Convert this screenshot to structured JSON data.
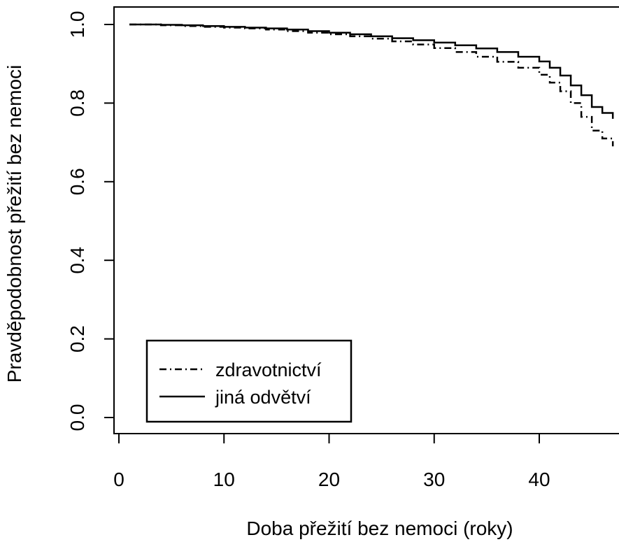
{
  "chart_data": {
    "type": "line",
    "title": "",
    "xlabel": "Doba přežití bez nemoci (roky)",
    "ylabel": "Pravděpodobnost přežití bez nemoci",
    "xlim": [
      1,
      47
    ],
    "ylim": [
      0,
      1
    ],
    "x_ticks": [
      0,
      10,
      20,
      30,
      40
    ],
    "x_tick_labels": [
      "0",
      "10",
      "20",
      "30",
      "40"
    ],
    "y_ticks": [
      0.0,
      0.2,
      0.4,
      0.6,
      0.8,
      1.0
    ],
    "y_tick_labels": [
      "0.0",
      "0.2",
      "0.4",
      "0.6",
      "0.8",
      "1.0"
    ],
    "legend_position": "bottom-left",
    "grid": false,
    "series": [
      {
        "name": "zdravotnictví",
        "line_style": "dash-dot",
        "color": "#000000",
        "x": [
          1,
          4,
          6,
          8,
          10,
          12,
          14,
          16,
          18,
          20,
          22,
          24,
          26,
          28,
          30,
          32,
          34,
          36,
          38,
          40,
          41,
          42,
          43,
          44,
          45,
          46,
          47
        ],
        "y": [
          1.0,
          0.998,
          0.996,
          0.994,
          0.992,
          0.99,
          0.987,
          0.983,
          0.979,
          0.975,
          0.97,
          0.964,
          0.957,
          0.949,
          0.94,
          0.93,
          0.918,
          0.905,
          0.89,
          0.872,
          0.852,
          0.83,
          0.8,
          0.765,
          0.73,
          0.71,
          0.69
        ]
      },
      {
        "name": "jiná odvětví",
        "line_style": "solid",
        "color": "#000000",
        "x": [
          1,
          4,
          6,
          8,
          10,
          12,
          14,
          16,
          18,
          20,
          22,
          24,
          26,
          28,
          30,
          32,
          34,
          36,
          38,
          40,
          41,
          42,
          43,
          44,
          45,
          46,
          47
        ],
        "y": [
          1.0,
          0.999,
          0.998,
          0.996,
          0.994,
          0.992,
          0.99,
          0.987,
          0.983,
          0.979,
          0.975,
          0.97,
          0.965,
          0.96,
          0.954,
          0.947,
          0.939,
          0.93,
          0.918,
          0.906,
          0.89,
          0.87,
          0.845,
          0.82,
          0.79,
          0.775,
          0.76
        ]
      }
    ]
  }
}
